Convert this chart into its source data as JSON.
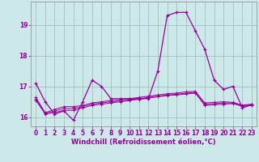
{
  "xlabel": "Windchill (Refroidissement éolien,°C)",
  "x": [
    0,
    1,
    2,
    3,
    4,
    5,
    6,
    7,
    8,
    9,
    10,
    11,
    12,
    13,
    14,
    15,
    16,
    17,
    18,
    19,
    20,
    21,
    22,
    23
  ],
  "line1": [
    17.1,
    16.5,
    16.1,
    16.2,
    15.9,
    16.5,
    17.2,
    17.0,
    16.6,
    16.6,
    16.6,
    16.6,
    16.6,
    17.5,
    19.3,
    19.4,
    19.4,
    18.8,
    18.2,
    17.2,
    16.9,
    17.0,
    16.3,
    16.4
  ],
  "line2": [
    16.55,
    16.1,
    16.15,
    16.22,
    16.22,
    16.3,
    16.38,
    16.42,
    16.46,
    16.5,
    16.54,
    16.58,
    16.62,
    16.66,
    16.7,
    16.72,
    16.75,
    16.78,
    16.38,
    16.4,
    16.42,
    16.44,
    16.35,
    16.38
  ],
  "line3": [
    16.6,
    16.12,
    16.2,
    16.28,
    16.28,
    16.34,
    16.42,
    16.46,
    16.5,
    16.52,
    16.56,
    16.6,
    16.64,
    16.68,
    16.72,
    16.74,
    16.78,
    16.8,
    16.42,
    16.44,
    16.46,
    16.46,
    16.37,
    16.4
  ],
  "line4": [
    16.65,
    16.14,
    16.25,
    16.34,
    16.34,
    16.38,
    16.46,
    16.5,
    16.54,
    16.56,
    16.6,
    16.64,
    16.68,
    16.72,
    16.76,
    16.78,
    16.82,
    16.84,
    16.46,
    16.48,
    16.5,
    16.48,
    16.39,
    16.42
  ],
  "line_color": "#990099",
  "bg_color": "#cce8e8",
  "grid_color": "#99bbbb",
  "ylim": [
    15.7,
    19.75
  ],
  "xlim": [
    -0.5,
    23.5
  ],
  "yticks": [
    16,
    17,
    18,
    19
  ],
  "xticks": [
    0,
    1,
    2,
    3,
    4,
    5,
    6,
    7,
    8,
    9,
    10,
    11,
    12,
    13,
    14,
    15,
    16,
    17,
    18,
    19,
    20,
    21,
    22,
    23
  ],
  "tick_fontsize": 5.5,
  "xlabel_fontsize": 6.0
}
